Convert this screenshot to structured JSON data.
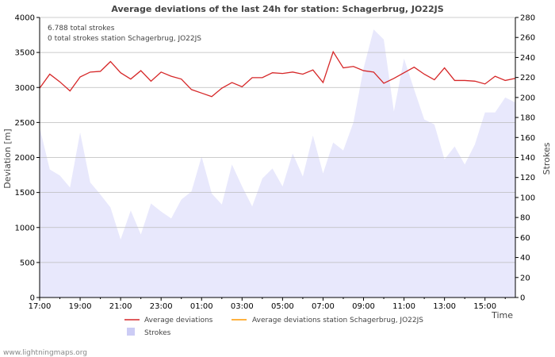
{
  "chart_data": {
    "type": "line",
    "title": "Average deviations of the last 24h for station: Schagerbrug, JO22JS",
    "xlabel": "Time",
    "ylabel_left": "Deviation  [m]",
    "ylabel_right": "Strokes",
    "ylim_left": [
      0,
      4000
    ],
    "ylim_right": [
      0,
      280
    ],
    "yticks_left": [
      "0",
      "500",
      "1000",
      "1500",
      "2000",
      "2500",
      "3000",
      "3500",
      "4000"
    ],
    "yticks_right": [
      "0",
      "20",
      "40",
      "60",
      "80",
      "100",
      "120",
      "140",
      "160",
      "180",
      "200",
      "220",
      "240",
      "260",
      "280"
    ],
    "xticks": [
      "17:00",
      "19:00",
      "21:00",
      "23:00",
      "01:00",
      "03:00",
      "05:00",
      "07:00",
      "09:00",
      "11:00",
      "13:00",
      "15:00"
    ],
    "xticks_hours": [
      0,
      2,
      4,
      6,
      8,
      10,
      12,
      14,
      16,
      18,
      20,
      22
    ],
    "x_range_hours": [
      0,
      23.5
    ],
    "annotations": [
      "6.788 total strokes",
      "0 total strokes station Schagerbrug, JO22JS"
    ],
    "legend": [
      "Average deviations",
      "Average deviations station Schagerbrug, JO22JS",
      "Strokes"
    ],
    "source": "www.lightningmaps.org",
    "colors": {
      "deviation": "#d62728",
      "station": "#ff9900",
      "strokes_fill": "#e8e8fc",
      "strokes_legend": "#ccccf5",
      "grid": "#bbbbbb",
      "axis": "#000000"
    },
    "series": [
      {
        "name": "Average deviations",
        "axis": "left",
        "x_hours": [
          0,
          0.5,
          1,
          1.5,
          2,
          2.5,
          3,
          3.5,
          4,
          4.5,
          5,
          5.5,
          6,
          6.5,
          7,
          7.5,
          8,
          8.5,
          9,
          9.5,
          10,
          10.5,
          11,
          11.5,
          12,
          12.5,
          13,
          13.5,
          14,
          14.5,
          15,
          15.5,
          16,
          16.5,
          17,
          17.5,
          18,
          18.5,
          19,
          19.5,
          20,
          20.5,
          21,
          21.5,
          22,
          22.5,
          23,
          23.5
        ],
        "values": [
          2990,
          3190,
          3080,
          2950,
          3150,
          3220,
          3230,
          3370,
          3210,
          3120,
          3240,
          3090,
          3220,
          3160,
          3120,
          2970,
          2920,
          2870,
          2990,
          3070,
          3010,
          3140,
          3140,
          3210,
          3200,
          3220,
          3190,
          3250,
          3070,
          3510,
          3280,
          3300,
          3240,
          3220,
          3060,
          3130,
          3210,
          3290,
          3190,
          3110,
          3280,
          3100,
          3100,
          3090,
          3050,
          3160,
          3100,
          3130
        ]
      },
      {
        "name": "Strokes",
        "axis": "right",
        "x_hours": [
          0,
          0.5,
          1,
          1.5,
          2,
          2.5,
          3,
          3.5,
          4,
          4.5,
          5,
          5.5,
          6,
          6.5,
          7,
          7.5,
          8,
          8.5,
          9,
          9.5,
          10,
          10.5,
          11,
          11.5,
          12,
          12.5,
          13,
          13.5,
          14,
          14.5,
          15,
          15.5,
          16,
          16.5,
          17,
          17.5,
          18,
          18.5,
          19,
          19.5,
          20,
          20.5,
          21,
          21.5,
          22,
          22.5,
          23,
          23.5
        ],
        "values": [
          170,
          128,
          122,
          110,
          165,
          115,
          103,
          90,
          58,
          87,
          63,
          94,
          86,
          79,
          98,
          106,
          141,
          104,
          93,
          133,
          111,
          91,
          119,
          129,
          111,
          144,
          121,
          162,
          124,
          155,
          147,
          175,
          229,
          268,
          258,
          186,
          239,
          208,
          178,
          173,
          138,
          151,
          133,
          153,
          185,
          185,
          200,
          195
        ]
      }
    ]
  }
}
